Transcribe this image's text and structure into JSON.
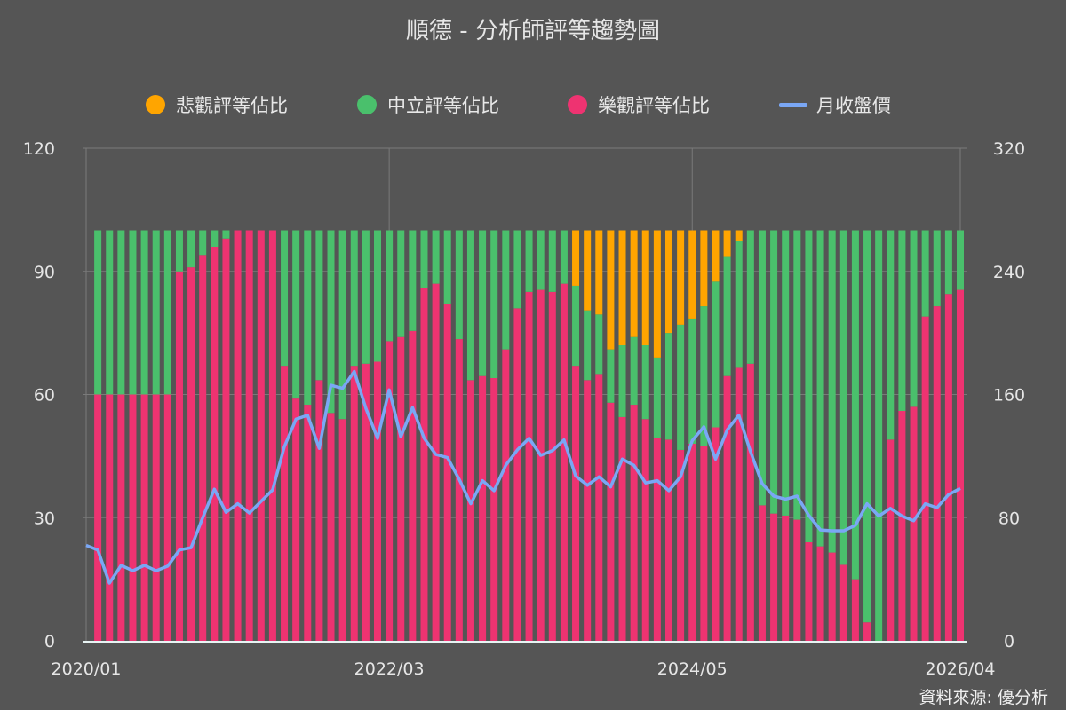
{
  "title": "順德 - 分析師評等趨勢圖",
  "source": "資料來源: 優分析",
  "legend": [
    {
      "label": "悲觀評等佔比",
      "color": "#FFA500",
      "shape": "circle"
    },
    {
      "label": "中立評等佔比",
      "color": "#4AC06C",
      "shape": "circle"
    },
    {
      "label": "樂觀評等佔比",
      "color": "#EE3371",
      "shape": "circle"
    },
    {
      "label": "月收盤價",
      "color": "#7AA7F5",
      "shape": "line"
    }
  ],
  "colors": {
    "background": "#555555",
    "bearish": "#FFA500",
    "neutral": "#4AC06C",
    "bullish": "#EE3371",
    "price": "#7AA7F5",
    "grid": "#7a7a7a"
  },
  "chart_data": {
    "type": "bar",
    "subtype": "stacked-bar-with-line-dual-axis",
    "title": "順德 - 分析師評等趨勢圖",
    "xlabel": "",
    "ylabel_left": "",
    "ylabel_right": "",
    "x_tick_labels": [
      "2020/01",
      "2022/03",
      "2024/05",
      "2026/04"
    ],
    "x_tick_indices": [
      0,
      26,
      52,
      75
    ],
    "y_left_ticks": [
      0,
      30,
      60,
      90,
      120
    ],
    "y_right_ticks": [
      0,
      80,
      160,
      240,
      320
    ],
    "ylim_left": [
      0,
      120
    ],
    "ylim_right": [
      0,
      320
    ],
    "grid": true,
    "legend_position": "top",
    "categories_start": "2020/01",
    "categories_end": "2026/04",
    "n_categories": 76,
    "series": [
      {
        "name": "樂觀評等佔比",
        "axis": "left",
        "type": "bar-stack",
        "values": [
          null,
          60,
          60,
          60,
          60,
          60,
          60,
          60,
          90,
          91,
          94,
          96,
          98,
          100,
          100,
          100,
          100,
          67,
          59,
          57.5,
          63.5,
          55.5,
          54,
          67,
          67.5,
          68,
          73,
          74,
          75.5,
          86,
          87,
          82,
          73.5,
          63.5,
          64.5,
          64,
          71,
          81,
          85,
          85.5,
          85,
          87,
          67,
          63.5,
          65,
          58,
          54.5,
          57.5,
          54,
          49.5,
          49,
          46.5,
          48,
          47.5,
          52,
          64.5,
          66.5,
          67.5,
          33,
          31,
          30.5,
          29.5,
          24,
          23,
          21.5,
          18.5,
          15,
          4.5,
          0,
          49,
          56,
          57,
          79,
          81.5,
          84.5,
          85.5
        ]
      },
      {
        "name": "中立評等佔比",
        "axis": "left",
        "type": "bar-stack",
        "values": [
          null,
          40,
          40,
          40,
          40,
          40,
          40,
          40,
          10,
          9,
          6,
          4,
          2,
          0,
          0,
          0,
          0,
          33,
          41,
          42.5,
          36.5,
          44.5,
          46,
          33,
          32.5,
          32,
          27,
          26,
          24.5,
          14,
          13,
          18,
          26.5,
          36.5,
          35.5,
          36,
          29,
          19,
          15,
          14.5,
          15,
          13,
          19.5,
          17,
          14.5,
          13,
          17.5,
          16.5,
          18,
          19.5,
          26,
          30.5,
          30.5,
          34,
          35.5,
          29,
          31,
          32.5,
          67,
          69,
          69.5,
          70.5,
          76,
          77,
          78.5,
          81.5,
          85,
          95.5,
          100,
          51,
          44,
          43,
          21,
          18.5,
          15.5,
          14.5
        ]
      },
      {
        "name": "悲觀評等佔比",
        "axis": "left",
        "type": "bar-stack",
        "values": [
          null,
          0,
          0,
          0,
          0,
          0,
          0,
          0,
          0,
          0,
          0,
          0,
          0,
          0,
          0,
          0,
          0,
          0,
          0,
          0,
          0,
          0,
          0,
          0,
          0,
          0,
          0,
          0,
          0,
          0,
          0,
          0,
          0,
          0,
          0,
          0,
          0,
          0,
          0,
          0,
          0,
          0,
          13.5,
          19.5,
          20.5,
          29,
          28,
          26,
          28,
          31,
          25,
          23,
          21.5,
          18.5,
          12.5,
          6.5,
          2.5,
          0,
          0,
          0,
          0,
          0,
          0,
          0,
          0,
          0,
          0,
          0,
          0,
          0,
          0,
          0,
          0,
          0,
          0,
          0
        ]
      },
      {
        "name": "月收盤價",
        "axis": "right",
        "type": "line",
        "values": [
          62,
          59,
          37.5,
          49,
          45.5,
          49,
          45.5,
          48.5,
          59,
          60.5,
          80,
          98.5,
          83.5,
          89,
          83,
          90.5,
          98,
          126,
          144,
          146.5,
          125,
          166,
          164,
          175,
          151,
          131.5,
          163,
          132.5,
          151.5,
          131.5,
          121,
          119,
          105,
          89,
          104,
          97.5,
          114,
          124,
          131.5,
          120.5,
          123.5,
          130.5,
          107,
          101,
          106.5,
          100,
          118,
          114,
          102.5,
          104,
          97.5,
          106.5,
          130,
          139,
          118,
          137,
          146.5,
          123,
          102,
          94,
          92,
          94,
          81.5,
          72,
          71.5,
          71.5,
          75,
          89,
          81,
          86,
          81,
          78,
          89,
          86.5,
          95,
          99
        ]
      }
    ]
  }
}
